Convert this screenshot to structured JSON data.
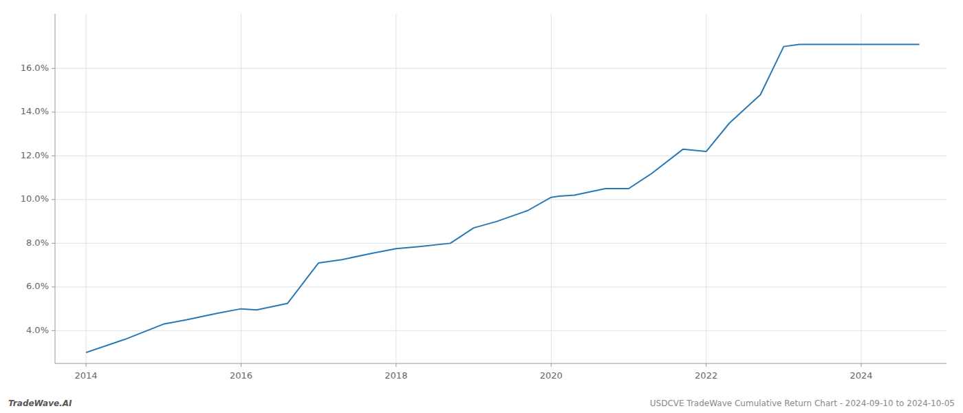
{
  "chart_data": {
    "type": "line",
    "x": [
      2014.0,
      2014.5,
      2015.0,
      2015.3,
      2015.7,
      2016.0,
      2016.2,
      2016.6,
      2017.0,
      2017.3,
      2017.7,
      2018.0,
      2018.3,
      2018.7,
      2019.0,
      2019.3,
      2019.7,
      2020.0,
      2020.1,
      2020.3,
      2020.7,
      2021.0,
      2021.3,
      2021.7,
      2022.0,
      2022.3,
      2022.7,
      2023.0,
      2023.2,
      2023.5,
      2023.7,
      2024.0,
      2024.75
    ],
    "values": [
      3.0,
      3.6,
      4.3,
      4.5,
      4.8,
      5.0,
      4.95,
      5.25,
      7.1,
      7.25,
      7.55,
      7.75,
      7.85,
      8.0,
      8.7,
      9.0,
      9.5,
      10.1,
      10.15,
      10.2,
      10.5,
      10.5,
      11.2,
      12.3,
      12.2,
      13.5,
      14.8,
      17.0,
      17.1,
      17.1,
      17.1,
      17.1,
      17.1
    ],
    "color": "#2878b5",
    "xlim": [
      2013.6,
      2025.1
    ],
    "ylim": [
      2.5,
      18.5
    ],
    "xticks": [
      2014,
      2016,
      2018,
      2020,
      2022,
      2024
    ],
    "yticks": [
      {
        "value": 4.0,
        "label": "4.0%"
      },
      {
        "value": 6.0,
        "label": "6.0%"
      },
      {
        "value": 8.0,
        "label": "8.0%"
      },
      {
        "value": 10.0,
        "label": "10.0%"
      },
      {
        "value": 12.0,
        "label": "12.0%"
      },
      {
        "value": 14.0,
        "label": "14.0%"
      },
      {
        "value": 16.0,
        "label": "16.0%"
      }
    ],
    "grid": true,
    "annotations": [
      "TradeWave.AI",
      "USDCVE TradeWave Cumulative Return Chart - 2024-09-10 to 2024-10-05"
    ]
  }
}
